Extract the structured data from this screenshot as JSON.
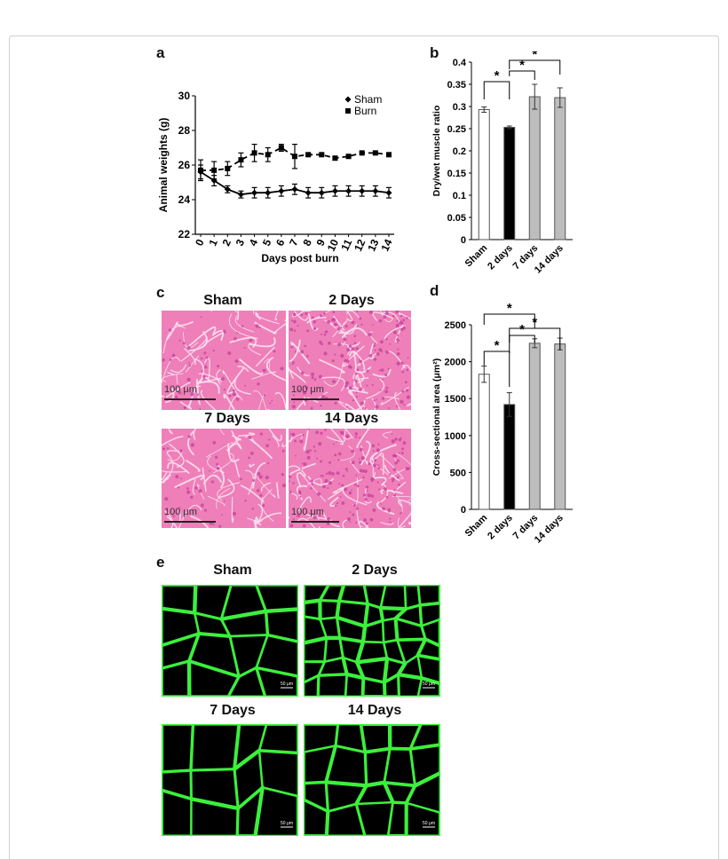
{
  "panels": {
    "a": "a",
    "b": "b",
    "c": "c",
    "d": "d",
    "e": "e"
  },
  "chart_data": [
    {
      "panel": "a",
      "type": "line",
      "xlabel": "Days post burn",
      "ylabel": "Animal weights (g)",
      "x": [
        0,
        1,
        2,
        3,
        4,
        5,
        6,
        7,
        8,
        9,
        10,
        11,
        12,
        13,
        14
      ],
      "ylim": [
        22,
        30
      ],
      "yticks": [
        22,
        24,
        26,
        28,
        30
      ],
      "legend_position": "top-right",
      "series": [
        {
          "name": "Sham",
          "style": "solid",
          "marker": "diamond",
          "values": [
            25.6,
            25.1,
            24.6,
            24.3,
            24.4,
            24.4,
            24.5,
            24.6,
            24.4,
            24.4,
            24.5,
            24.5,
            24.5,
            24.5,
            24.4
          ],
          "errors": [
            0.4,
            0.3,
            0.2,
            0.2,
            0.3,
            0.3,
            0.3,
            0.3,
            0.3,
            0.3,
            0.3,
            0.3,
            0.3,
            0.3,
            0.3
          ]
        },
        {
          "name": "Burn",
          "style": "dashed",
          "marker": "square",
          "values": [
            25.7,
            25.7,
            25.8,
            26.3,
            26.7,
            26.6,
            27.0,
            26.5,
            26.6,
            26.6,
            26.4,
            26.5,
            26.7,
            26.7,
            26.6
          ],
          "errors": [
            0.6,
            0.5,
            0.4,
            0.4,
            0.5,
            0.4,
            0.2,
            0.7,
            0.1,
            0.05,
            0.1,
            0.1,
            0.05,
            0.05,
            0.05
          ]
        }
      ]
    },
    {
      "panel": "b",
      "type": "bar",
      "ylabel": "Dry/wet muscle ratio",
      "categories": [
        "Sham",
        "2 days",
        "7 days",
        "14 days"
      ],
      "values": [
        0.293,
        0.253,
        0.322,
        0.32
      ],
      "errors": [
        0.006,
        0.003,
        0.028,
        0.022
      ],
      "colors": [
        "#ffffff",
        "#000000",
        "#bdbdbd",
        "#bdbdbd"
      ],
      "ylim": [
        0,
        0.4
      ],
      "yticks": [
        0,
        0.05,
        0.1,
        0.15,
        0.2,
        0.25,
        0.3,
        0.35,
        0.4
      ],
      "ytick_labels": [
        "0",
        "0.05",
        "0.1",
        "0.15",
        "0.2",
        "0.25",
        "0.3",
        "0.35",
        "0.4"
      ],
      "significance": [
        {
          "from": 0,
          "to": 1,
          "label": "*"
        },
        {
          "from": 1,
          "to": 2,
          "label": "*"
        },
        {
          "from": 1,
          "to": 3,
          "label": "*"
        }
      ]
    },
    {
      "panel": "d",
      "type": "bar",
      "ylabel": "Cross-sectional area (μm²)",
      "categories": [
        "Sham",
        "2 days",
        "7 days",
        "14 days"
      ],
      "values": [
        1830,
        1420,
        2250,
        2240
      ],
      "errors": [
        110,
        160,
        60,
        80
      ],
      "colors": [
        "#ffffff",
        "#000000",
        "#bdbdbd",
        "#bdbdbd"
      ],
      "ylim": [
        0,
        2500
      ],
      "yticks": [
        0,
        500,
        1000,
        1500,
        2000,
        2500
      ],
      "ytick_labels": [
        "0",
        "500",
        "1000",
        "1500",
        "2000",
        "2500"
      ],
      "significance": [
        {
          "from": 0,
          "to": 1,
          "label": "*"
        },
        {
          "from": 0,
          "to": 2,
          "label": "*"
        },
        {
          "from": 1,
          "to": 2,
          "label": "*"
        },
        {
          "from": 1,
          "to": 3,
          "label": "*"
        }
      ]
    }
  ],
  "histology": {
    "titles": [
      "Sham",
      "2 Days",
      "7 Days",
      "14 Days"
    ],
    "scale_label": "100 μm"
  },
  "immuno": {
    "titles": [
      "Sham",
      "2 Days",
      "7 Days",
      "14 Days"
    ],
    "scale_label": "50 μm"
  },
  "colors": {
    "he_base": "#ee7fb9",
    "he_dark": "#c8449b",
    "fluor": "#3cf03c"
  }
}
